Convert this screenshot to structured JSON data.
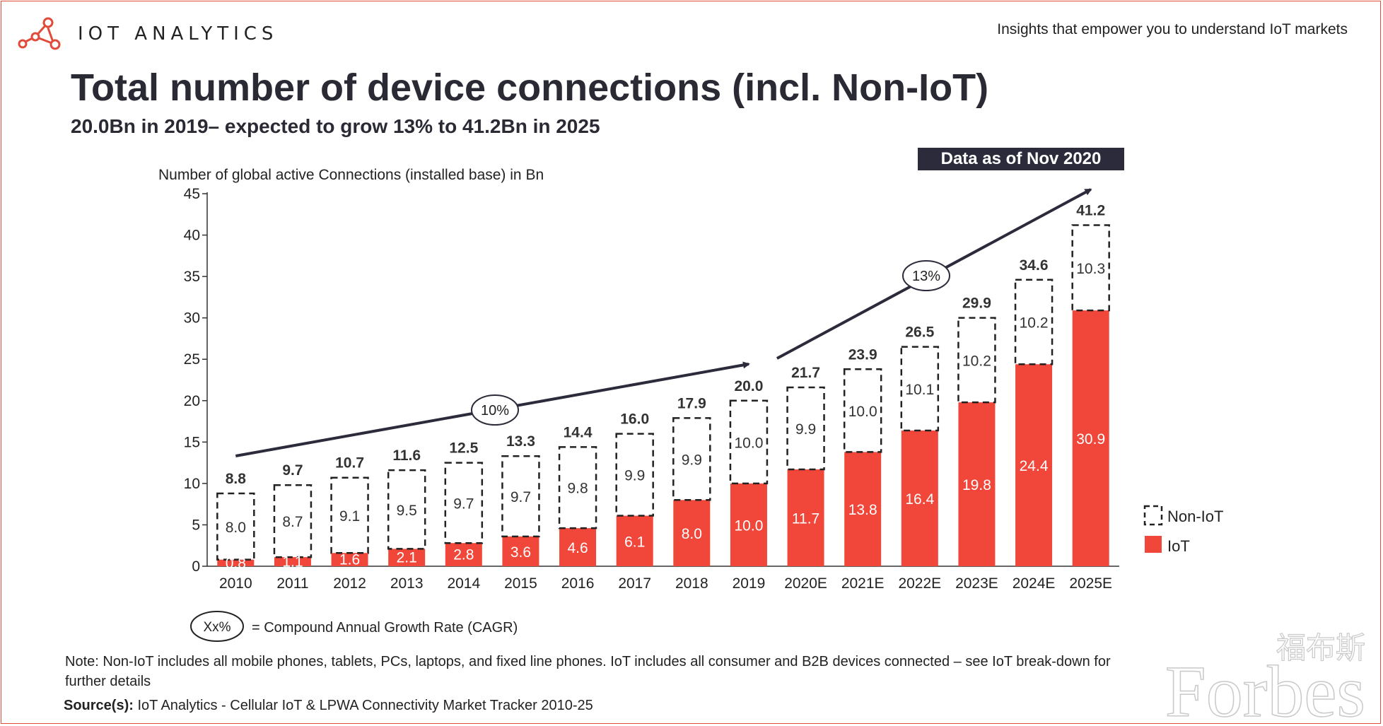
{
  "header": {
    "brand": "IOT ANALYTICS",
    "tagline": "Insights that empower you to understand IoT markets"
  },
  "title": "Total number of device connections (incl. Non-IoT)",
  "subtitle": "20.0Bn in 2019– expected to grow 13% to 41.2Bn in 2025",
  "badge": "Data as of Nov 2020",
  "cagr_legend": {
    "symbol": "Xx%",
    "text": "= Compound Annual Growth Rate (CAGR)"
  },
  "note": "Note: Non-IoT includes all mobile phones, tablets, PCs, laptops, and fixed line phones. IoT includes all consumer and B2B devices connected – see IoT break-down for further details",
  "source": {
    "label": "Source(s):",
    "text": " IoT Analytics - Cellular IoT & LPWA Connectivity Market Tracker 2010-25"
  },
  "watermark": {
    "text": "Forbes",
    "cjk": "福布斯"
  },
  "colors": {
    "iot": "#f0473a",
    "non_iot_border": "#222222",
    "arrow": "#2b2b3b",
    "frame": "#e04b3a"
  },
  "chart_data": {
    "type": "bar",
    "stacked": true,
    "ylabel": "Number of global active Connections (installed base) in Bn",
    "ylim": [
      0,
      45
    ],
    "yticks": [
      0,
      5,
      10,
      15,
      20,
      25,
      30,
      35,
      40,
      45
    ],
    "categories": [
      "2010",
      "2011",
      "2012",
      "2013",
      "2014",
      "2015",
      "2016",
      "2017",
      "2018",
      "2019",
      "2020E",
      "2021E",
      "2022E",
      "2023E",
      "2024E",
      "2025E"
    ],
    "series": [
      {
        "name": "IoT",
        "values": [
          0.8,
          1.1,
          1.6,
          2.1,
          2.8,
          3.6,
          4.6,
          6.1,
          8.0,
          10.0,
          11.7,
          13.8,
          16.4,
          19.8,
          24.4,
          30.9
        ]
      },
      {
        "name": "Non-IoT",
        "values": [
          8.0,
          8.7,
          9.1,
          9.5,
          9.7,
          9.7,
          9.8,
          9.9,
          9.9,
          10.0,
          9.9,
          10.0,
          10.1,
          10.2,
          10.2,
          10.3
        ]
      }
    ],
    "totals": [
      8.8,
      9.7,
      10.7,
      11.6,
      12.5,
      13.3,
      14.4,
      16.0,
      17.9,
      20.0,
      21.7,
      23.9,
      26.5,
      29.9,
      34.6,
      41.2
    ],
    "cagr": [
      {
        "label": "10%",
        "from": "2010",
        "to": "2019"
      },
      {
        "label": "13%",
        "from": "2019",
        "to": "2025E"
      }
    ],
    "legend_position": "right"
  }
}
